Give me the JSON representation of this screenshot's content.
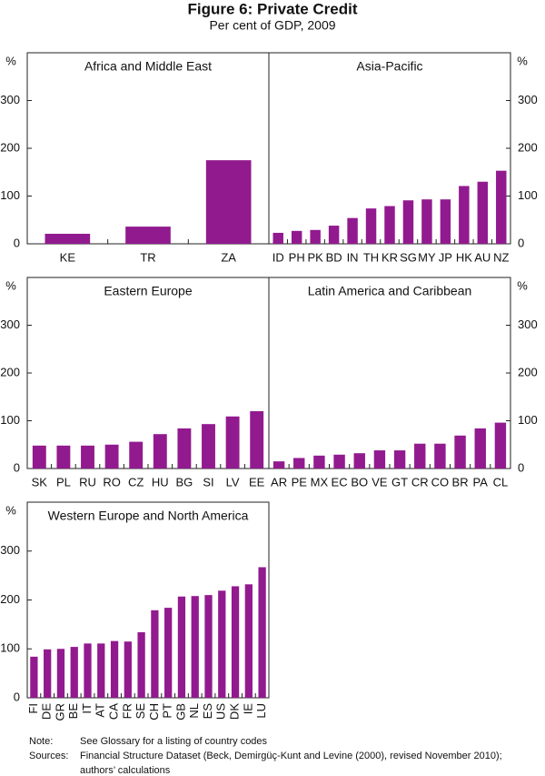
{
  "title": "Figure 6: Private Credit",
  "subtitle": "Per cent of GDP, 2009",
  "notes": [
    {
      "label": "Note:",
      "lines": [
        "See Glossary for a listing of country codes"
      ]
    },
    {
      "label": "Sources:",
      "lines": [
        "Financial Structure Dataset (Beck, Demirgüç-Kunt and Levine (2000), revised November 2010);",
        "authors’ calculations"
      ]
    }
  ],
  "chart_data": [
    {
      "type": "bar",
      "title": "Africa and Middle East",
      "ylabel": "%",
      "color": "#921a8f",
      "categories": [
        "KE",
        "TR",
        "ZA"
      ],
      "values": [
        21,
        36,
        175
      ],
      "ylim": [
        0,
        400
      ],
      "yticks": [
        0,
        100,
        200,
        300
      ],
      "rotate_labels": false
    },
    {
      "type": "bar",
      "title": "Asia-Pacific",
      "ylabel": "%",
      "color": "#921a8f",
      "categories": [
        "ID",
        "PH",
        "PK",
        "BD",
        "IN",
        "TH",
        "KR",
        "SG",
        "MY",
        "JP",
        "HK",
        "AU",
        "NZ"
      ],
      "values": [
        23,
        27,
        29,
        38,
        54,
        74,
        79,
        91,
        93,
        93,
        121,
        130,
        153
      ],
      "ylim": [
        0,
        400
      ],
      "yticks": [
        0,
        100,
        200,
        300
      ],
      "rotate_labels": false
    },
    {
      "type": "bar",
      "title": "Eastern Europe",
      "ylabel": "%",
      "color": "#921a8f",
      "categories": [
        "SK",
        "PL",
        "RU",
        "RO",
        "CZ",
        "HU",
        "BG",
        "SI",
        "LV",
        "EE"
      ],
      "values": [
        48,
        48,
        48,
        50,
        56,
        72,
        84,
        93,
        109,
        120
      ],
      "ylim": [
        0,
        400
      ],
      "yticks": [
        0,
        100,
        200,
        300
      ],
      "rotate_labels": false
    },
    {
      "type": "bar",
      "title": "Latin America and Caribbean",
      "ylabel": "%",
      "color": "#921a8f",
      "categories": [
        "AR",
        "PE",
        "MX",
        "EC",
        "BO",
        "VE",
        "GT",
        "CR",
        "CO",
        "BR",
        "PA",
        "CL"
      ],
      "values": [
        15,
        22,
        27,
        29,
        32,
        38,
        38,
        52,
        52,
        69,
        84,
        96
      ],
      "ylim": [
        0,
        400
      ],
      "yticks": [
        0,
        100,
        200,
        300
      ],
      "rotate_labels": false
    },
    {
      "type": "bar",
      "title": "Western Europe and North America",
      "ylabel": "%",
      "color": "#921a8f",
      "categories": [
        "FI",
        "DE",
        "GR",
        "BE",
        "IT",
        "AT",
        "CA",
        "FR",
        "SE",
        "CH",
        "PT",
        "GB",
        "NL",
        "ES",
        "US",
        "DK",
        "IE",
        "LU"
      ],
      "values": [
        84,
        99,
        100,
        104,
        111,
        111,
        116,
        115,
        134,
        179,
        184,
        207,
        208,
        210,
        219,
        228,
        232,
        267
      ],
      "ylim": [
        0,
        400
      ],
      "yticks": [
        0,
        100,
        200,
        300
      ],
      "rotate_labels": true
    }
  ]
}
